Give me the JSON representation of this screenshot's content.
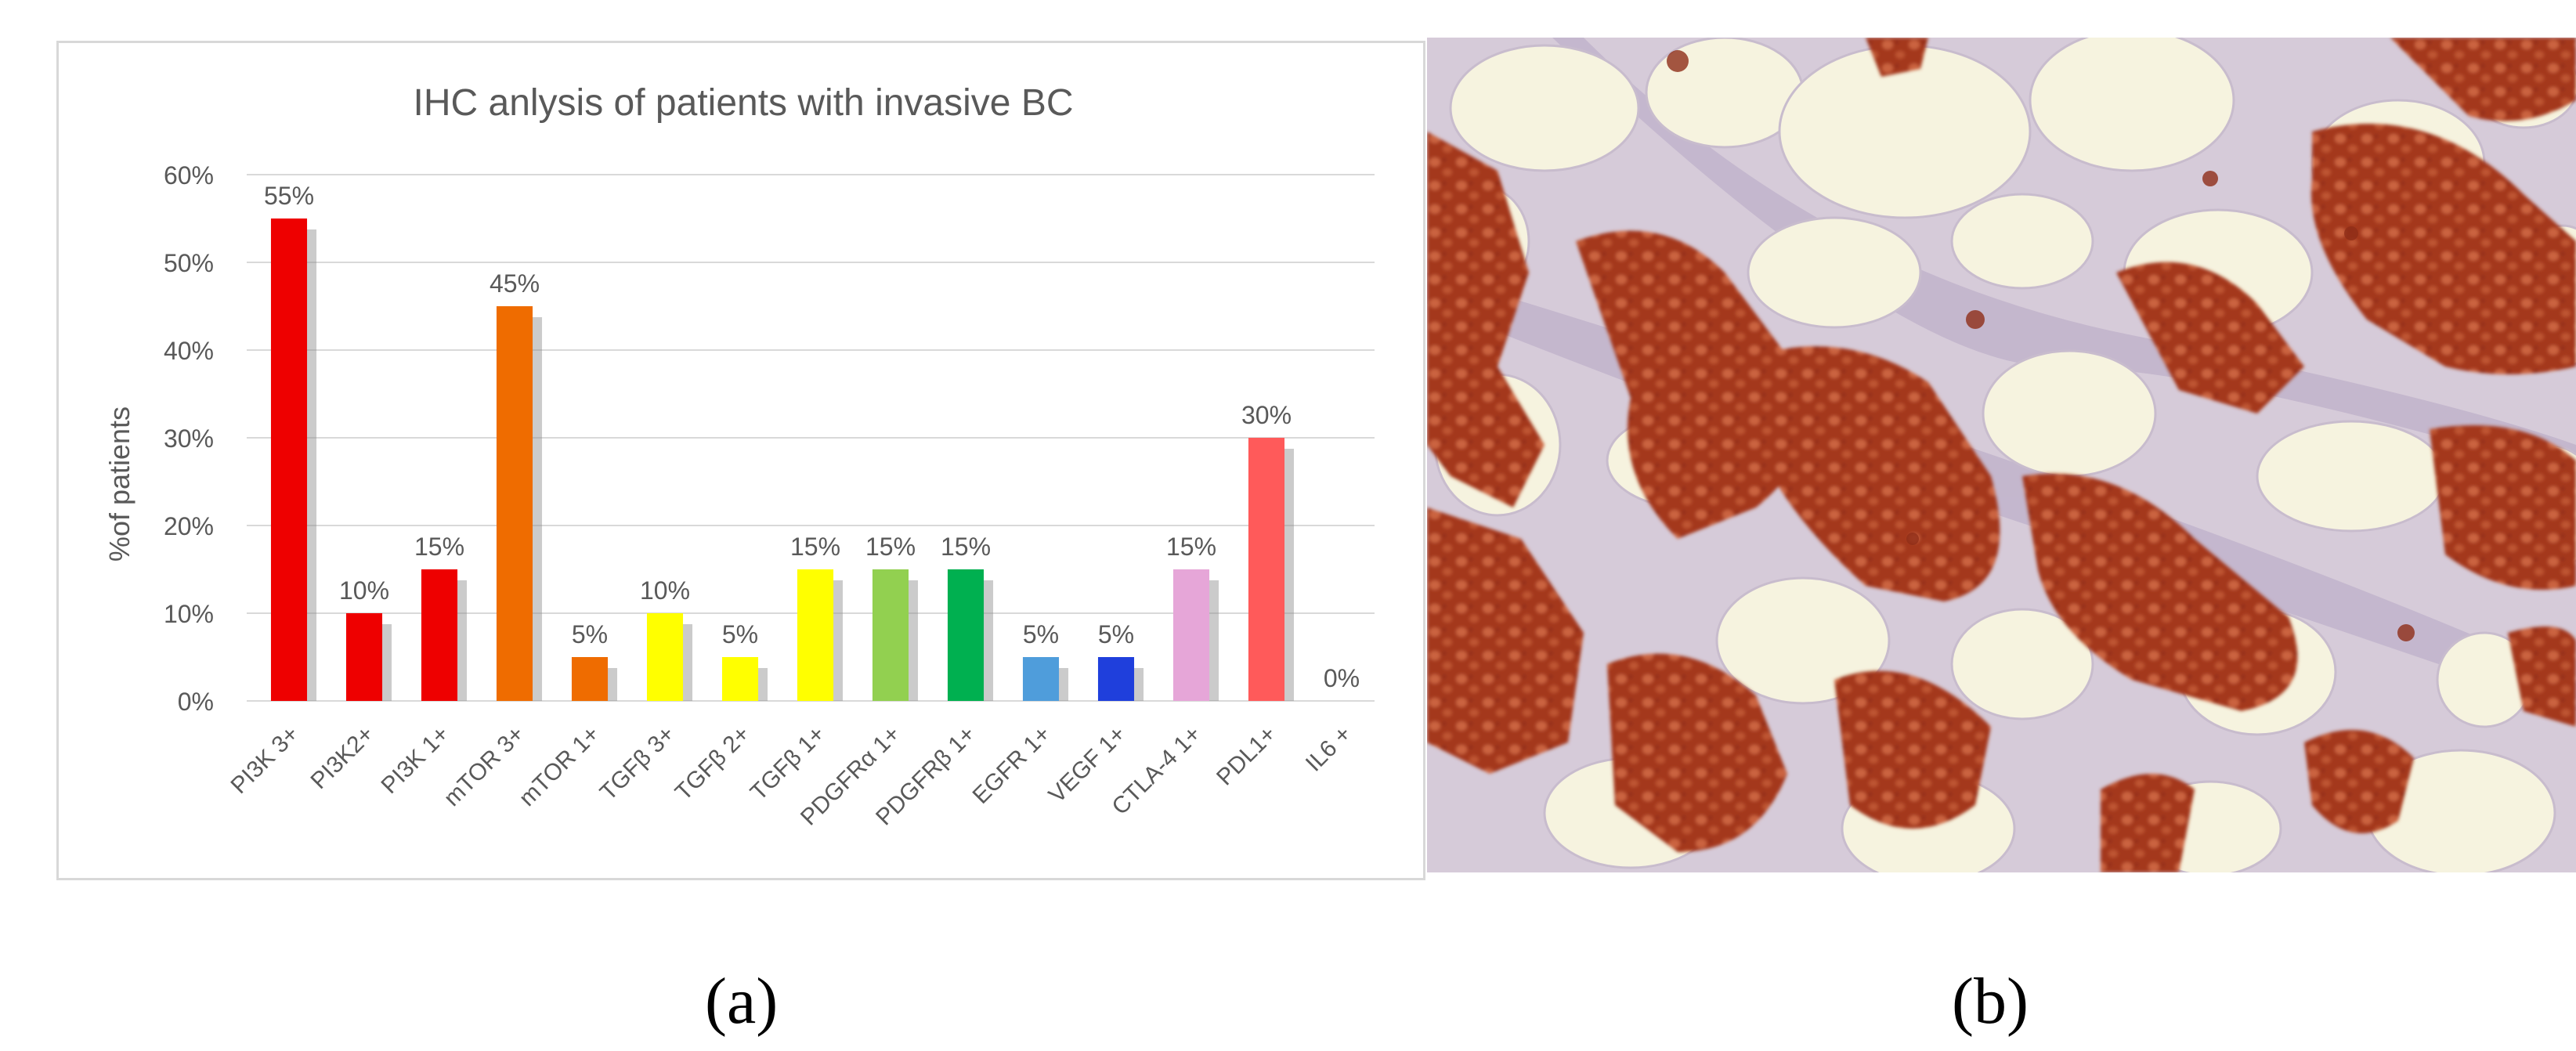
{
  "panel_labels": {
    "a": "(a)",
    "b": "(b)"
  },
  "chart_data": {
    "type": "bar",
    "title": "IHC anlysis of patients with invasive BC",
    "ylabel": "%of patients",
    "xlabel": "",
    "ylim": [
      0,
      60
    ],
    "yticks": [
      0,
      10,
      20,
      30,
      40,
      50,
      60
    ],
    "ytick_labels": [
      "0%",
      "10%",
      "20%",
      "30%",
      "40%",
      "50%",
      "60%"
    ],
    "grid": true,
    "legend": "none",
    "categories": [
      "PI3K 3+",
      "PI3K2+",
      "PI3K 1+",
      "mTOR 3+",
      "mTOR 1+",
      "TGFβ 3+",
      "TGFβ 2+",
      "TGFβ 1+",
      "PDGFRα 1+",
      "PDGFRβ 1+",
      "EGFR 1+",
      "VEGF 1+",
      "CTLA-4 1+",
      "PDL1+",
      "IL6 +"
    ],
    "values": [
      55,
      10,
      15,
      45,
      5,
      10,
      5,
      15,
      15,
      15,
      5,
      5,
      15,
      30,
      0
    ],
    "data_labels": [
      "55%",
      "10%",
      "15%",
      "45%",
      "5%",
      "10%",
      "5%",
      "15%",
      "15%",
      "15%",
      "5%",
      "5%",
      "15%",
      "30%",
      "0%"
    ],
    "colors": [
      "#ee0000",
      "#ee0000",
      "#ee0000",
      "#ef6c00",
      "#ef6c00",
      "#ffff00",
      "#ffff00",
      "#ffff00",
      "#92d050",
      "#00b050",
      "#4f9ddb",
      "#1f3fdc",
      "#e6a6d8",
      "#ff5a5a",
      "#cccccc"
    ]
  },
  "micrograph": {
    "description_colors": {
      "background": "#f6f3df",
      "stroma": "#d9cfe0",
      "stain": "#a83a1f"
    }
  }
}
